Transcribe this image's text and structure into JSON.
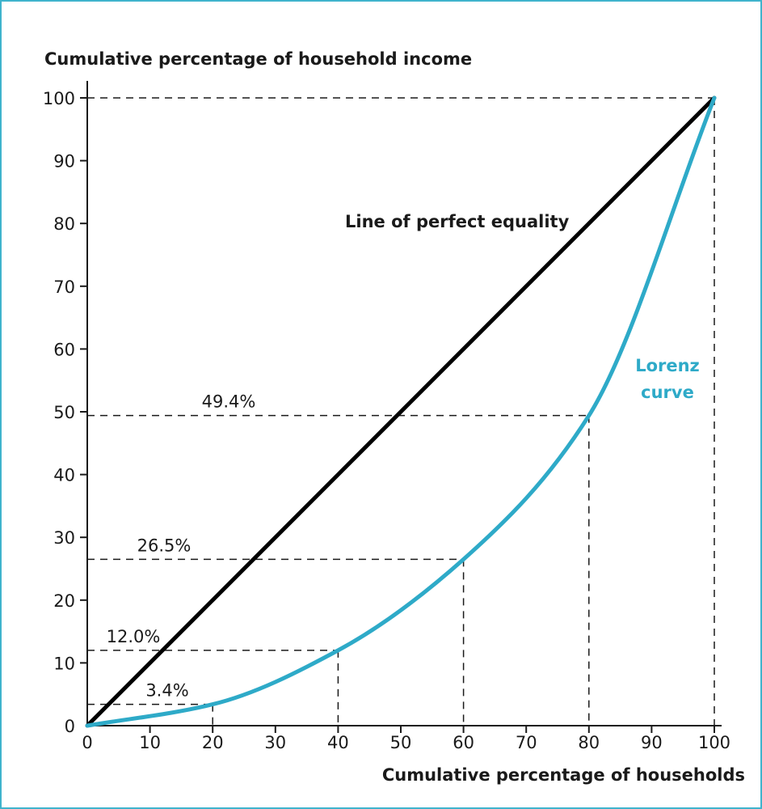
{
  "chart_data": {
    "type": "line",
    "xlabel": "Cumulative percentage of households",
    "ylabel": "Cumulative percentage of household income",
    "xlim": [
      0,
      100
    ],
    "ylim": [
      0,
      100
    ],
    "x_ticks": [
      "0",
      "10",
      "20",
      "30",
      "40",
      "50",
      "60",
      "70",
      "80",
      "90",
      "100"
    ],
    "y_ticks": [
      "0",
      "10",
      "20",
      "30",
      "40",
      "50",
      "60",
      "70",
      "80",
      "90",
      "100"
    ],
    "grid": false,
    "series": [
      {
        "name": "Line of perfect equality",
        "x": [
          0,
          100
        ],
        "y": [
          0,
          100
        ],
        "color": "#000000"
      },
      {
        "name": "Lorenz curve",
        "x": [
          0,
          20,
          40,
          60,
          80,
          100
        ],
        "y": [
          0,
          3.4,
          12.0,
          26.5,
          49.4,
          100
        ],
        "color": "#2eaac8"
      }
    ],
    "annotations": [
      {
        "text": "3.4%",
        "x": 20,
        "y": 3.4
      },
      {
        "text": "12.0%",
        "x": 40,
        "y": 12.0
      },
      {
        "text": "26.5%",
        "x": 60,
        "y": 26.5
      },
      {
        "text": "49.4%",
        "x": 80,
        "y": 49.4
      }
    ],
    "reference_lines": [
      {
        "x": 100,
        "y": 100
      }
    ]
  }
}
